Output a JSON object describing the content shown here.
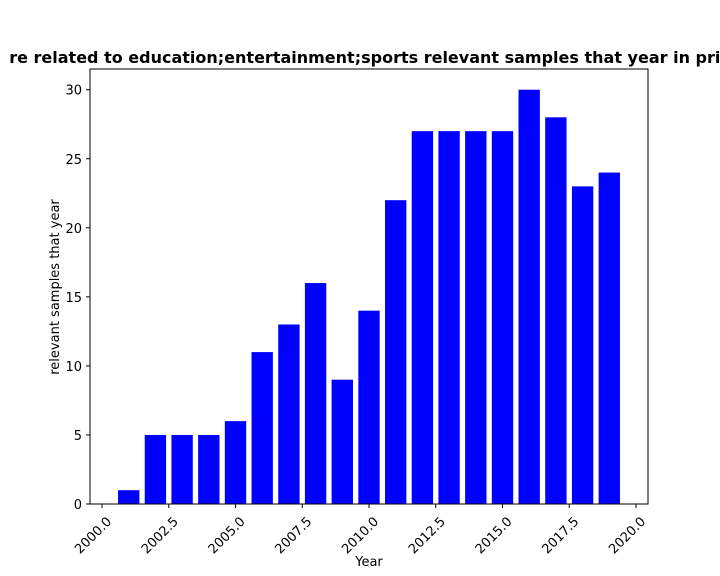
{
  "chart_data": {
    "type": "bar",
    "title": "re related to education;entertainment;sports relevant samples that year in priv",
    "xlabel": "Year",
    "ylabel": "relevant samples that year",
    "x": [
      2001,
      2002,
      2003,
      2004,
      2005,
      2006,
      2007,
      2008,
      2009,
      2010,
      2011,
      2012,
      2013,
      2014,
      2015,
      2016,
      2017,
      2018,
      2019
    ],
    "values": [
      1,
      5,
      5,
      5,
      6,
      11,
      13,
      16,
      9,
      14,
      22,
      27,
      27,
      27,
      27,
      30,
      28,
      23,
      24
    ],
    "xlim": [
      1999.55,
      2020.45
    ],
    "ylim": [
      0,
      31.5
    ],
    "xticks": [
      "2000.0",
      "2002.5",
      "2005.0",
      "2007.5",
      "2010.0",
      "2012.5",
      "2015.0",
      "2017.5",
      "2020.0"
    ],
    "yticks": [
      "0",
      "5",
      "10",
      "15",
      "20",
      "25",
      "30"
    ],
    "bar_color": "#0000ff",
    "grid": false,
    "legend": "none"
  }
}
